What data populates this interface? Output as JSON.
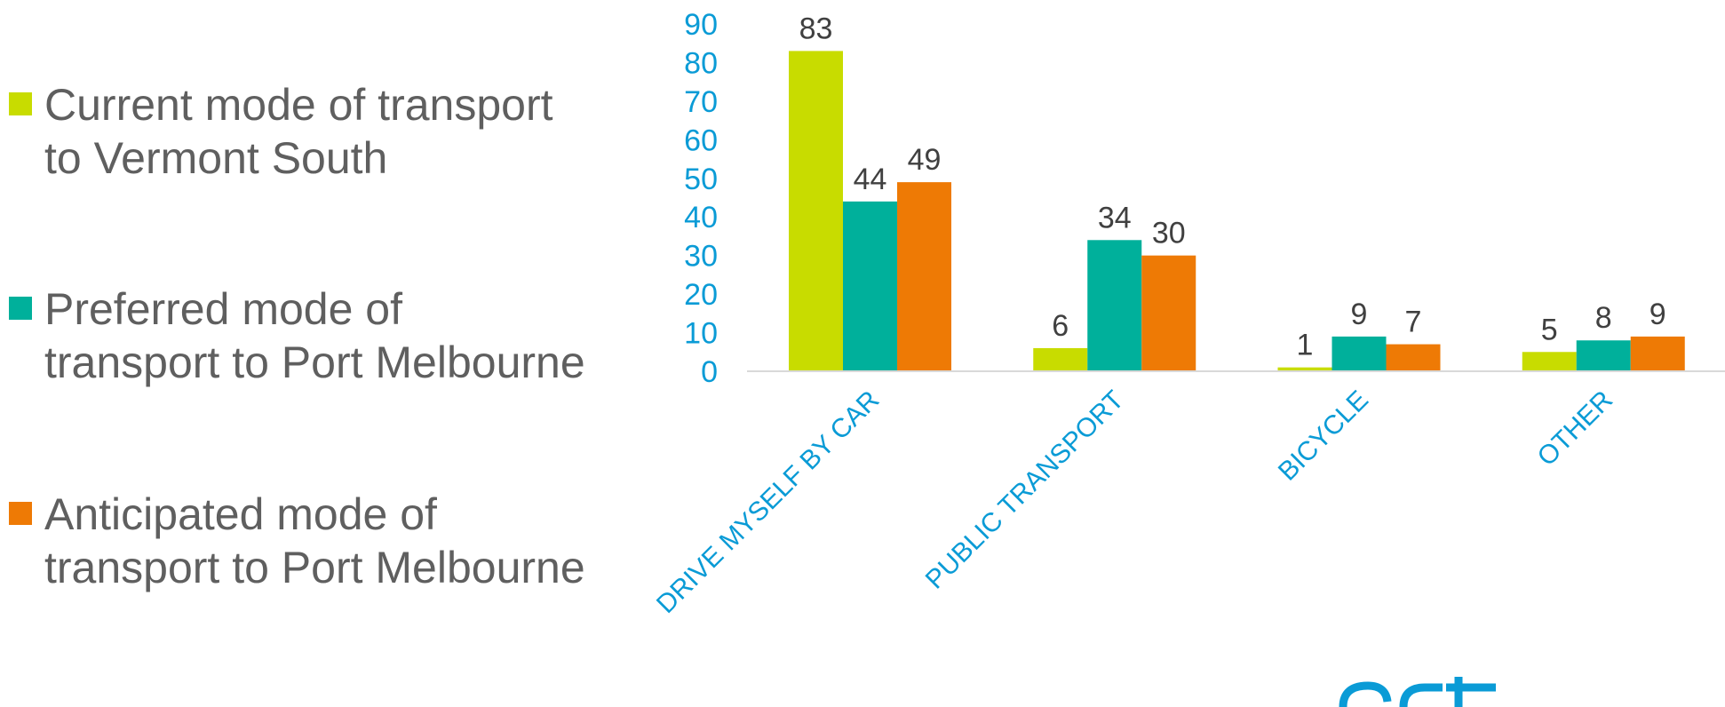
{
  "chart_data": {
    "type": "bar",
    "categories": [
      "DRIVE MYSELF BY CAR",
      "PUBLIC TRANSPORT",
      "BICYCLE",
      "OTHER"
    ],
    "series": [
      {
        "name": "Current mode of transport to Vermont South",
        "color": "#c8dc00",
        "values": [
          83,
          6,
          1,
          5
        ]
      },
      {
        "name": "Preferred mode of transport to Port Melbourne",
        "color": "#00b09b",
        "values": [
          44,
          34,
          9,
          8
        ]
      },
      {
        "name": "Anticipated mode of transport to Port Melbourne",
        "color": "#ee7a05",
        "values": [
          49,
          30,
          7,
          9
        ]
      }
    ],
    "yticks": [
      0,
      10,
      20,
      30,
      40,
      50,
      60,
      70,
      80,
      90
    ],
    "ylim": [
      0,
      90
    ],
    "legend_position": "left",
    "grid": false,
    "colors": {
      "axis_text": "#0a9bd6",
      "data_label": "#404040",
      "legend_text": "#5f5f5f",
      "baseline": "#d9d9d9"
    }
  }
}
